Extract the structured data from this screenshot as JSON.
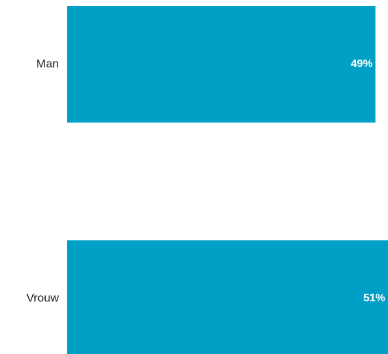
{
  "chart_data": {
    "type": "bar",
    "orientation": "horizontal",
    "categories": [
      "Man",
      "Vrouw"
    ],
    "values": [
      49,
      51
    ],
    "value_labels": [
      "49%",
      "51%"
    ],
    "xlim": [
      0,
      51
    ],
    "grid": false,
    "legend": "none",
    "bar_color": "#00a0c6"
  }
}
